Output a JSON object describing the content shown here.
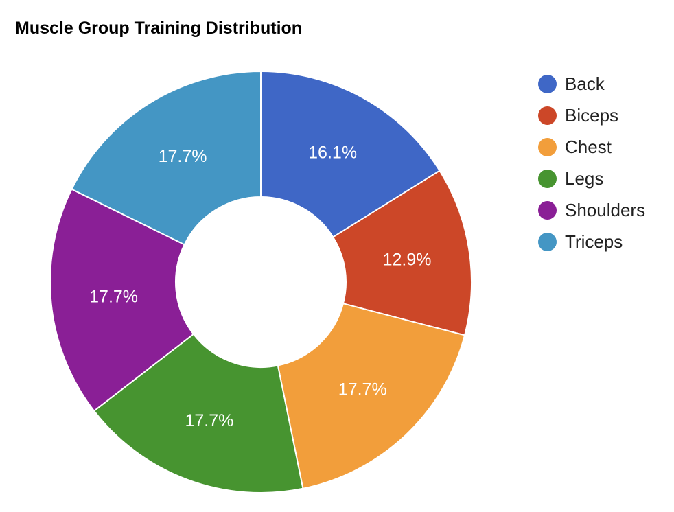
{
  "chart_data": {
    "type": "pie",
    "title": "Muscle Group Training Distribution",
    "donut": true,
    "legend_position": "right",
    "slices": [
      {
        "name": "Back",
        "percent": 16.1,
        "label": "16.1%",
        "color": "#3f67c6"
      },
      {
        "name": "Biceps",
        "percent": 12.9,
        "label": "12.9%",
        "color": "#cc4728"
      },
      {
        "name": "Chest",
        "percent": 17.7,
        "label": "17.7%",
        "color": "#f29e3b"
      },
      {
        "name": "Legs",
        "percent": 17.7,
        "label": "17.7%",
        "color": "#479430"
      },
      {
        "name": "Shoulders",
        "percent": 17.7,
        "label": "17.7%",
        "color": "#8a1f96"
      },
      {
        "name": "Triceps",
        "percent": 17.7,
        "label": "17.7%",
        "color": "#4496c4"
      }
    ]
  }
}
